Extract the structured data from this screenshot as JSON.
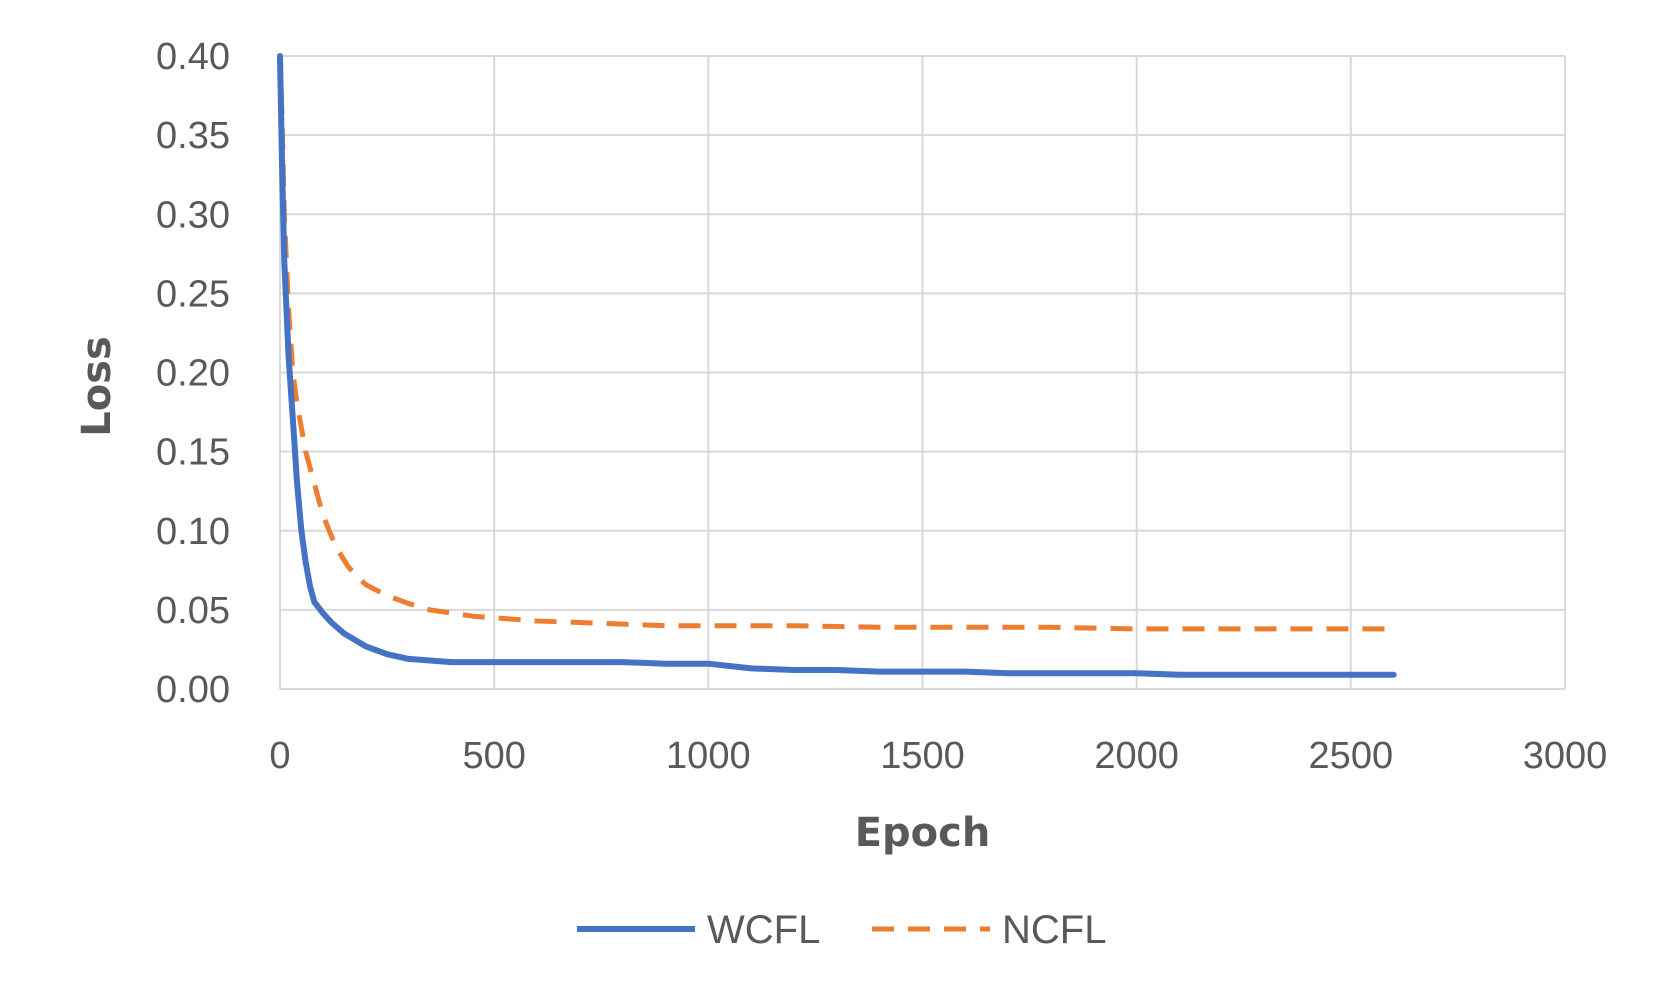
{
  "chart_data": {
    "type": "line",
    "title": "",
    "xlabel": "Epoch",
    "ylabel": "Loss",
    "xlim": [
      0,
      3000
    ],
    "ylim": [
      0,
      0.4
    ],
    "x_ticks": [
      0,
      500,
      1000,
      1500,
      2000,
      2500,
      3000
    ],
    "x_tick_labels": [
      "0",
      "500",
      "1000",
      "1500",
      "2000",
      "2500",
      "3000"
    ],
    "y_ticks": [
      0,
      0.05,
      0.1,
      0.15,
      0.2,
      0.25,
      0.3,
      0.35,
      0.4
    ],
    "y_tick_labels": [
      "0.00",
      "0.05",
      "0.10",
      "0.15",
      "0.20",
      "0.25",
      "0.30",
      "0.35",
      "0.40"
    ],
    "grid": true,
    "legend_position": "bottom",
    "series": [
      {
        "name": "WCFL",
        "color": "#4472C4",
        "style": "solid",
        "x": [
          0,
          5,
          10,
          20,
          30,
          40,
          50,
          60,
          70,
          80,
          100,
          120,
          150,
          200,
          250,
          300,
          350,
          400,
          500,
          600,
          700,
          800,
          900,
          1000,
          1100,
          1200,
          1300,
          1400,
          1500,
          1600,
          1700,
          1800,
          1900,
          2000,
          2100,
          2200,
          2300,
          2400,
          2500,
          2600
        ],
        "y": [
          0.4,
          0.33,
          0.27,
          0.21,
          0.17,
          0.13,
          0.1,
          0.08,
          0.065,
          0.055,
          0.048,
          0.042,
          0.035,
          0.027,
          0.022,
          0.019,
          0.018,
          0.017,
          0.017,
          0.017,
          0.017,
          0.017,
          0.016,
          0.016,
          0.013,
          0.012,
          0.012,
          0.011,
          0.011,
          0.011,
          0.01,
          0.01,
          0.01,
          0.01,
          0.009,
          0.009,
          0.009,
          0.009,
          0.009,
          0.009
        ]
      },
      {
        "name": "NCFL",
        "color": "#ED7D31",
        "style": "dashed",
        "x": [
          0,
          5,
          10,
          20,
          30,
          40,
          50,
          60,
          80,
          100,
          130,
          160,
          200,
          250,
          300,
          350,
          400,
          450,
          500,
          600,
          700,
          800,
          900,
          1000,
          1200,
          1400,
          1600,
          1800,
          2000,
          2200,
          2400,
          2600
        ],
        "y": [
          0.4,
          0.36,
          0.3,
          0.24,
          0.2,
          0.18,
          0.165,
          0.15,
          0.13,
          0.11,
          0.09,
          0.077,
          0.066,
          0.059,
          0.054,
          0.05,
          0.048,
          0.046,
          0.045,
          0.043,
          0.042,
          0.041,
          0.04,
          0.04,
          0.04,
          0.039,
          0.039,
          0.039,
          0.038,
          0.038,
          0.038,
          0.038
        ]
      }
    ]
  }
}
